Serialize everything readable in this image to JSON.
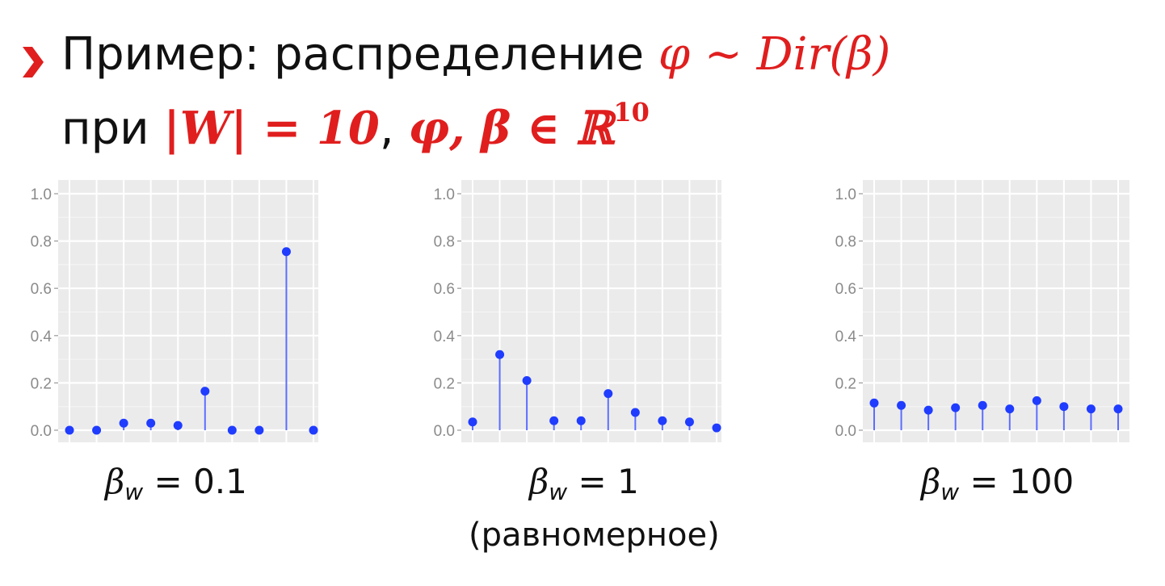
{
  "slide": {
    "line1_text": "Пример: распределение",
    "line1_math": "φ ∼ Dir(β)",
    "line2_text": "при",
    "line2_math_a": "|W| = 10",
    "line2_sep": ",",
    "line2_math_b": "φ, β ∈ ℝ",
    "line2_exp": "10"
  },
  "captions": [
    {
      "beta": "β",
      "sub": "w",
      "eq": " = 0.1",
      "note": ""
    },
    {
      "beta": "β",
      "sub": "w",
      "eq": " = 1",
      "note": "(равномерное)"
    },
    {
      "beta": "β",
      "sub": "w",
      "eq": " = 100",
      "note": ""
    }
  ],
  "colors": {
    "accent_red": "#e01e1e",
    "point_blue": "#1f3cff",
    "stem_blue": "#5b6cff",
    "panel_bg": "#ebebeb",
    "grid": "#ffffff",
    "tick_text": "#8a8a8a"
  },
  "chart_data": [
    {
      "type": "scatter",
      "style": "stem",
      "x": [
        1,
        2,
        3,
        4,
        5,
        6,
        7,
        8,
        9,
        10
      ],
      "values": [
        0.0,
        0.0,
        0.03,
        0.03,
        0.02,
        0.165,
        0.0,
        0.0,
        0.755,
        0.0
      ],
      "yticks": [
        "0.0",
        "0.2",
        "0.4",
        "0.6",
        "0.8",
        "1.0"
      ],
      "ylim": [
        0,
        1
      ],
      "grid": true
    },
    {
      "type": "scatter",
      "style": "stem",
      "x": [
        1,
        2,
        3,
        4,
        5,
        6,
        7,
        8,
        9,
        10
      ],
      "values": [
        0.035,
        0.32,
        0.21,
        0.04,
        0.04,
        0.155,
        0.075,
        0.04,
        0.035,
        0.01
      ],
      "yticks": [
        "0.0",
        "0.2",
        "0.4",
        "0.6",
        "0.8",
        "1.0"
      ],
      "ylim": [
        0,
        1
      ],
      "grid": true
    },
    {
      "type": "scatter",
      "style": "stem",
      "x": [
        1,
        2,
        3,
        4,
        5,
        6,
        7,
        8,
        9,
        10
      ],
      "values": [
        0.115,
        0.105,
        0.085,
        0.095,
        0.105,
        0.09,
        0.125,
        0.1,
        0.09,
        0.09
      ],
      "yticks": [
        "0.0",
        "0.2",
        "0.4",
        "0.6",
        "0.8",
        "1.0"
      ],
      "ylim": [
        0,
        1
      ],
      "grid": true
    }
  ]
}
